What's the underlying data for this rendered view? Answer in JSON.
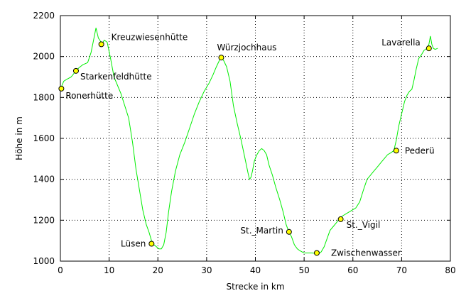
{
  "chart_data": {
    "type": "line",
    "xlabel": "Strecke in km",
    "ylabel": "Höhe in m",
    "xlim": [
      0,
      80
    ],
    "ylim": [
      1000,
      2200
    ],
    "xticks": [
      0,
      10,
      20,
      30,
      40,
      50,
      60,
      70,
      80
    ],
    "yticks": [
      1000,
      1200,
      1400,
      1600,
      1800,
      2000,
      2200
    ],
    "grid": true,
    "colors": {
      "line": "#00ee00",
      "marker": "#ffff00",
      "marker_edge": "#000000",
      "grid": "#000000"
    },
    "series": [
      {
        "x": [
          0,
          0.7,
          1.4,
          2.2,
          3.2,
          3.8,
          4.6,
          5.6,
          6.3,
          6.8,
          7.3,
          7.8,
          8.1,
          8.5,
          9.0,
          9.6,
          10.3,
          11.0,
          11.7,
          12.4,
          13.2,
          14.0,
          14.8,
          15.5,
          16.2,
          16.9,
          17.6,
          18.2,
          18.7,
          19.2,
          19.7,
          20.2,
          20.7,
          21.2,
          21.7,
          22.2,
          22.8,
          23.6,
          24.5,
          25.5,
          26.5,
          27.5,
          28.5,
          29.5,
          30.5,
          31.3,
          32.0,
          32.6,
          33.0,
          33.5,
          34.1,
          34.8,
          35.5,
          36.3,
          37.0,
          37.8,
          38.5,
          38.8,
          39.1,
          39.4,
          39.8,
          40.3,
          40.8,
          41.3,
          41.8,
          42.3,
          42.8,
          43.5,
          44.2,
          45.0,
          45.7,
          46.3,
          46.9,
          47.4,
          48.0,
          48.6,
          49.2,
          50.0,
          50.8,
          51.6,
          52.3,
          52.9,
          53.5,
          54.1,
          54.7,
          55.3,
          56.0,
          56.7,
          57.3,
          57.8,
          58.5,
          59.2,
          59.9,
          60.6,
          61.4,
          62.2,
          62.9,
          63.6,
          64.3,
          65.0,
          65.7,
          66.4,
          67.1,
          67.8,
          68.4,
          68.9,
          69.4,
          70.0,
          70.6,
          71.1,
          71.6,
          72.1,
          72.5,
          73.0,
          73.5,
          74.1,
          74.6,
          75.2,
          75.6,
          75.9,
          76.2,
          76.5,
          76.9,
          77.4
        ],
        "y": [
          1840,
          1880,
          1890,
          1900,
          1930,
          1945,
          1960,
          1970,
          2020,
          2080,
          2140,
          2090,
          2080,
          2060,
          2080,
          2070,
          1990,
          1900,
          1860,
          1820,
          1760,
          1700,
          1580,
          1450,
          1350,
          1250,
          1180,
          1140,
          1100,
          1080,
          1070,
          1060,
          1060,
          1080,
          1140,
          1240,
          1340,
          1440,
          1520,
          1580,
          1650,
          1720,
          1780,
          1830,
          1870,
          1910,
          1950,
          1980,
          1995,
          1980,
          1950,
          1880,
          1760,
          1670,
          1600,
          1510,
          1430,
          1400,
          1410,
          1440,
          1490,
          1520,
          1540,
          1550,
          1540,
          1520,
          1470,
          1420,
          1360,
          1300,
          1240,
          1180,
          1140,
          1120,
          1080,
          1060,
          1050,
          1040,
          1040,
          1040,
          1038,
          1035,
          1045,
          1070,
          1110,
          1150,
          1170,
          1190,
          1210,
          1220,
          1230,
          1240,
          1250,
          1260,
          1290,
          1350,
          1400,
          1420,
          1440,
          1460,
          1480,
          1500,
          1520,
          1530,
          1540,
          1590,
          1660,
          1720,
          1780,
          1810,
          1830,
          1840,
          1880,
          1940,
          1990,
          2010,
          2030,
          2040,
          2060,
          2100,
          2060,
          2040,
          2035,
          2040
        ]
      }
    ],
    "points": [
      {
        "name": "Ronerhütte",
        "x": 0.2,
        "y": 1843
      },
      {
        "name": "Starkenfeldhütte",
        "x": 3.2,
        "y": 1930
      },
      {
        "name": "Kreuzwiesenhütte",
        "x": 8.4,
        "y": 2060
      },
      {
        "name": "Lüsen",
        "x": 18.7,
        "y": 1085
      },
      {
        "name": "Würzjochhaus",
        "x": 33.0,
        "y": 1995
      },
      {
        "name": "St._Martin",
        "x": 46.9,
        "y": 1143
      },
      {
        "name": "Zwischenwasser",
        "x": 52.6,
        "y": 1040
      },
      {
        "name": "St._Vigil",
        "x": 57.5,
        "y": 1205
      },
      {
        "name": "Pederü",
        "x": 68.9,
        "y": 1540
      },
      {
        "name": "Lavarella",
        "x": 75.6,
        "y": 2040
      }
    ]
  }
}
